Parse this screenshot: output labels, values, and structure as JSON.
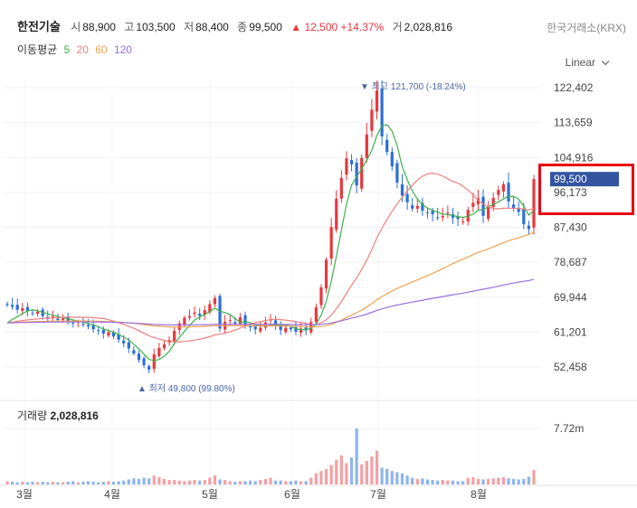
{
  "header": {
    "name": "한전기술",
    "open_label": "시",
    "open": "88,900",
    "high_label": "고",
    "high": "103,500",
    "low_label": "저",
    "low": "88,400",
    "close_label": "종",
    "close": "99,500",
    "change": "▲ 12,500 +14.37%",
    "volume_label": "거",
    "volume": "2,028,816",
    "exchange": "한국거래소(KRX)"
  },
  "ma_legend": {
    "label": "이동평균",
    "items": [
      {
        "name": "5",
        "color": "#3cb24a"
      },
      {
        "name": "20",
        "color": "#f07f7f"
      },
      {
        "name": "60",
        "color": "#f0a34e"
      },
      {
        "name": "120",
        "color": "#9b6ee0"
      }
    ]
  },
  "scale_selector": "Linear",
  "volume_panel": {
    "label": "거래량",
    "value": "2,028,816",
    "tick": "7.72m"
  },
  "colors": {
    "up": "#e8373e",
    "down": "#2b6fd6",
    "price_tag": "#3355a0"
  },
  "chart_data": {
    "type": "candlestick",
    "y_ticks": [
      "122,402",
      "113,659",
      "104,916",
      "96,173",
      "87,430",
      "78,687",
      "69,944",
      "61,201",
      "52,458"
    ],
    "ylim": [
      44000,
      127000
    ],
    "x_ticks": [
      "3월",
      "4월",
      "5월",
      "6월",
      "7월",
      "8월"
    ],
    "last_price": "99,500",
    "annotations": {
      "max": "▼ 최고 121,700 (-18.24%)",
      "min": "▲ 최저 49,800 (99.80%)"
    },
    "closes": [
      68000,
      67500,
      66800,
      67200,
      66500,
      65800,
      66300,
      65200,
      64800,
      65100,
      64200,
      64600,
      63900,
      63400,
      63800,
      63000,
      62600,
      61900,
      61500,
      60800,
      61200,
      60100,
      59300,
      58400,
      57100,
      55800,
      54200,
      52900,
      51800,
      55600,
      57200,
      58100,
      59200,
      61500,
      63400,
      64800,
      65200,
      66100,
      65300,
      66700,
      68200,
      69700,
      62100,
      63800,
      64200,
      63300,
      64900,
      62900,
      62400,
      61900,
      62300,
      63600,
      64400,
      62800,
      61700,
      62300,
      61900,
      61300,
      62100,
      61600,
      63700,
      67400,
      72400,
      79300,
      87500,
      94600,
      99800,
      104700,
      103200,
      97900,
      104800,
      110700,
      116900,
      121700,
      110200,
      106300,
      102700,
      98600,
      95400,
      93700,
      92100,
      92800,
      91600,
      91200,
      90700,
      89900,
      90300,
      91100,
      89800,
      89500,
      88900,
      91800,
      93600,
      94700,
      90300,
      92500,
      94800,
      96800,
      98200,
      93900,
      92100,
      91300,
      88200,
      87000,
      99500
    ],
    "volumes": [
      0.06,
      0.05,
      0.04,
      0.05,
      0.04,
      0.05,
      0.04,
      0.05,
      0.04,
      0.05,
      0.04,
      0.04,
      0.05,
      0.06,
      0.04,
      0.05,
      0.06,
      0.05,
      0.04,
      0.05,
      0.06,
      0.05,
      0.06,
      0.07,
      0.09,
      0.11,
      0.1,
      0.12,
      0.11,
      0.16,
      0.13,
      0.1,
      0.08,
      0.08,
      0.07,
      0.06,
      0.07,
      0.08,
      0.07,
      0.08,
      0.12,
      0.16,
      0.09,
      0.08,
      0.06,
      0.05,
      0.06,
      0.06,
      0.07,
      0.06,
      0.08,
      0.1,
      0.12,
      0.07,
      0.07,
      0.06,
      0.06,
      0.07,
      0.06,
      0.06,
      0.12,
      0.2,
      0.24,
      0.28,
      0.35,
      0.44,
      0.52,
      0.38,
      0.48,
      1.0,
      0.36,
      0.42,
      0.5,
      0.6,
      0.3,
      0.28,
      0.24,
      0.22,
      0.2,
      0.16,
      0.12,
      0.1,
      0.11,
      0.09,
      0.08,
      0.07,
      0.08,
      0.07,
      0.07,
      0.06,
      0.06,
      0.12,
      0.13,
      0.1,
      0.09,
      0.1,
      0.11,
      0.12,
      0.13,
      0.11,
      0.1,
      0.09,
      0.1,
      0.14,
      0.26
    ]
  }
}
